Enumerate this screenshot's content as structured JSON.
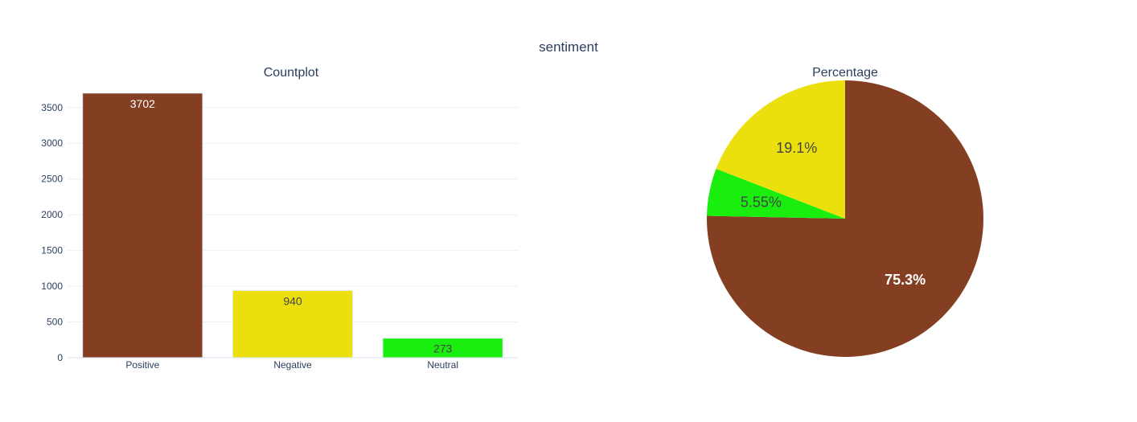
{
  "title": "sentiment",
  "chart_data": [
    {
      "type": "bar",
      "title": "Countplot",
      "categories": [
        "Positive",
        "Negative",
        "Neutral"
      ],
      "values": [
        3702,
        940,
        273
      ],
      "data_labels": [
        "3702",
        "940",
        "273"
      ],
      "colors": [
        "#843f23",
        "#ebe00d",
        "#1aee0e"
      ],
      "label_colors": [
        "#ffffff",
        "#444444",
        "#444444"
      ],
      "ylim": [
        0,
        3700
      ],
      "yticks": [
        0,
        500,
        1000,
        1500,
        2000,
        2500,
        3000,
        3500
      ],
      "ytick_labels": [
        "0",
        "500",
        "1000",
        "1500",
        "2000",
        "2500",
        "3000",
        "3500"
      ],
      "grid": true,
      "xlabel": "",
      "ylabel": ""
    },
    {
      "type": "pie",
      "title": "Percentage",
      "slices": [
        {
          "label": "Positive",
          "value": 3702,
          "percent_label": "75.3%",
          "color": "#843f23",
          "text_color": "#ffffff",
          "bold": true
        },
        {
          "label": "Negative",
          "value": 940,
          "percent_label": "19.1%",
          "color": "#ebe00d",
          "text_color": "#444444",
          "bold": false
        },
        {
          "label": "Neutral",
          "value": 273,
          "percent_label": "5.55%",
          "color": "#1aee0e",
          "text_color": "#444444",
          "bold": false
        }
      ],
      "direction": "counterclockwise",
      "start": "top"
    }
  ]
}
